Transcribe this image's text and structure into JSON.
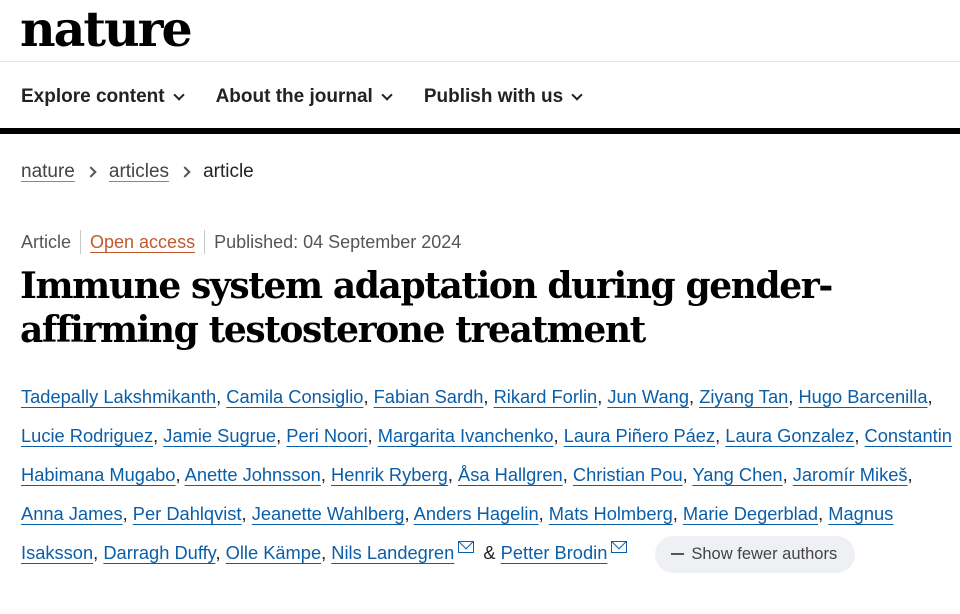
{
  "logo": "nature",
  "nav": [
    {
      "label": "Explore content"
    },
    {
      "label": "About the journal"
    },
    {
      "label": "Publish with us"
    }
  ],
  "breadcrumb": {
    "items": [
      "nature",
      "articles"
    ],
    "current": "article"
  },
  "meta": {
    "type": "Article",
    "access": "Open access",
    "published": "Published: 04 September 2024"
  },
  "title": "Immune system adaptation during gender-affirming testosterone treatment",
  "authors": [
    "Tadepally Lakshmikanth",
    "Camila Consiglio",
    "Fabian Sardh",
    "Rikard Forlin",
    "Jun Wang",
    "Ziyang Tan",
    "Hugo Barcenilla",
    "Lucie Rodriguez",
    "Jamie Sugrue",
    "Peri Noori",
    "Margarita Ivanchenko",
    "Laura Piñero Páez",
    "Laura Gonzalez",
    "Constantin Habimana Mugabo",
    "Anette Johnsson",
    "Henrik Ryberg",
    "Åsa Hallgren",
    "Christian Pou",
    "Yang Chen",
    "Jaromír Mikeš",
    "Anna James",
    "Per Dahlqvist",
    "Jeanette Wahlberg",
    "Anders Hagelin",
    "Mats Holmberg",
    "Marie Degerblad",
    "Magnus Isaksson",
    "Darragh Duffy",
    "Olle Kämpe",
    "Nils Landegren",
    "Petter Brodin"
  ],
  "authors_ampersand": "&",
  "show_fewer_label": "Show fewer authors",
  "colors": {
    "link": "#0b5ea8",
    "open_access": "#c05a2e",
    "rule": "#000000"
  }
}
